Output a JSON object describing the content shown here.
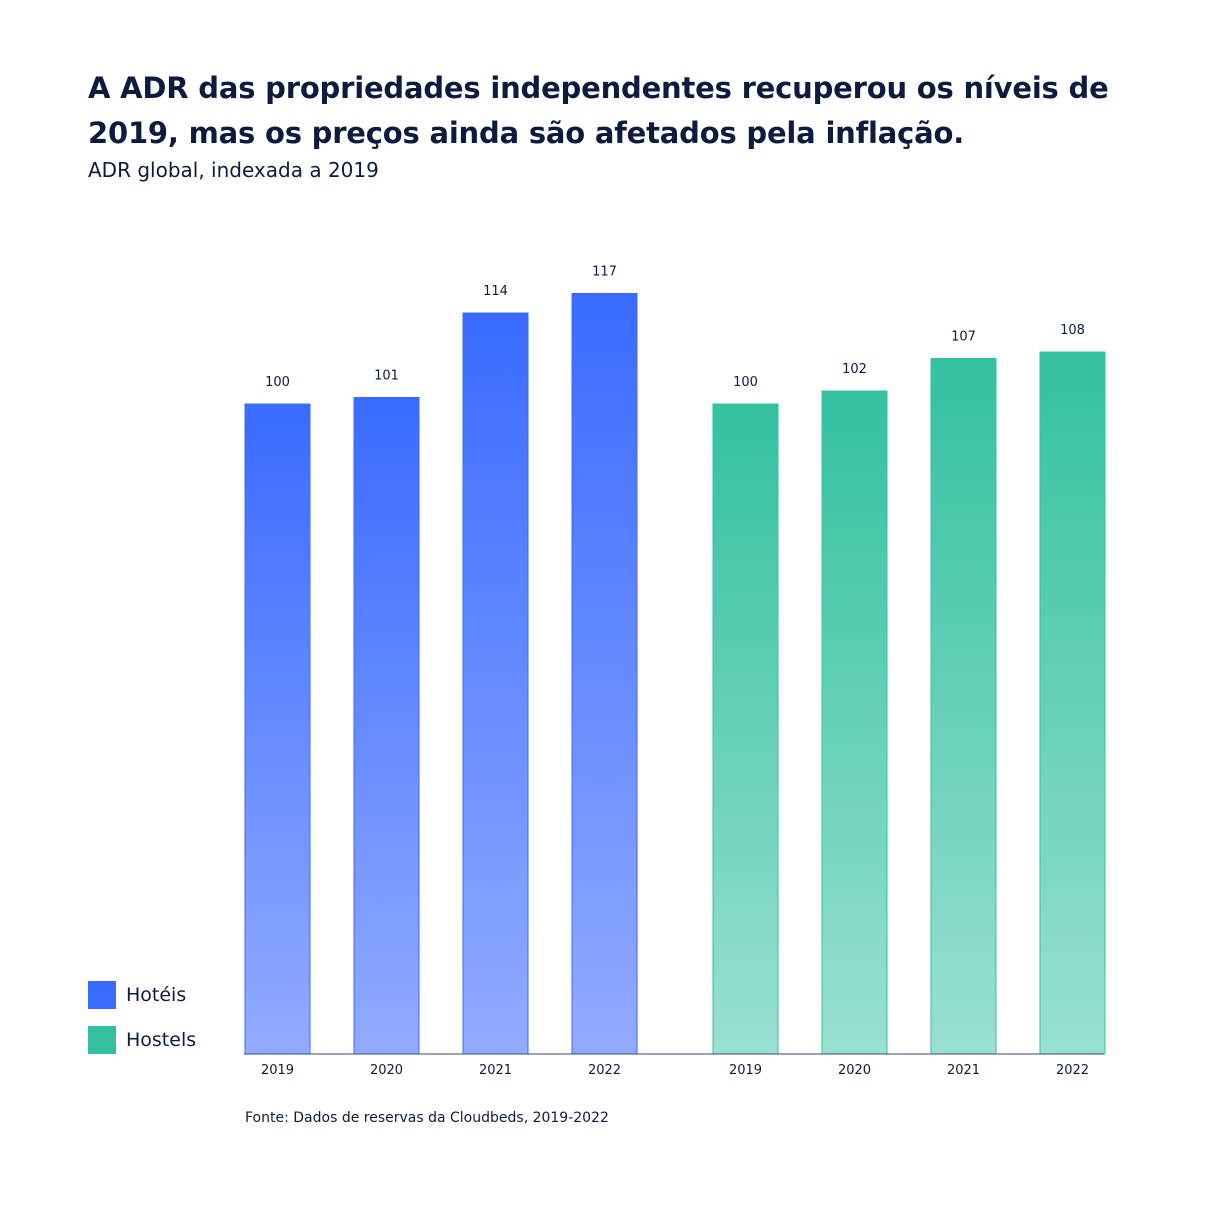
{
  "title": "A ADR das propriedades independentes recuperou os níveis de 2019, mas os preços ainda são afetados pela inflação.",
  "subtitle": "ADR global, indexada a 2019",
  "source": "Fonte: Dados de reservas da Cloudbeds, 2019-2022",
  "colors": {
    "hoteis": "#3a6bff",
    "hoteis_light": "#93abff",
    "hostels": "#33c19f",
    "hostels_light": "#9ae0d0",
    "text": "#0d1b3e"
  },
  "legend": [
    {
      "label": "Hotéis",
      "color": "#3a6bff"
    },
    {
      "label": "Hostels",
      "color": "#33c19f"
    }
  ],
  "chart_data": {
    "type": "bar",
    "title": "A ADR das propriedades independentes recuperou os níveis de 2019, mas os preços ainda são afetados pela inflação.",
    "subtitle": "ADR global, indexada a 2019",
    "xlabel": "",
    "ylabel": "",
    "ylim": [
      0,
      117
    ],
    "grid": false,
    "legend_position": "bottom-left",
    "groups": [
      {
        "name": "Hotéis",
        "categories": [
          "2019",
          "2020",
          "2021",
          "2022"
        ],
        "values": [
          100,
          101,
          114,
          117
        ]
      },
      {
        "name": "Hostels",
        "categories": [
          "2019",
          "2020",
          "2021",
          "2022"
        ],
        "values": [
          100,
          102,
          107,
          108
        ]
      }
    ]
  }
}
